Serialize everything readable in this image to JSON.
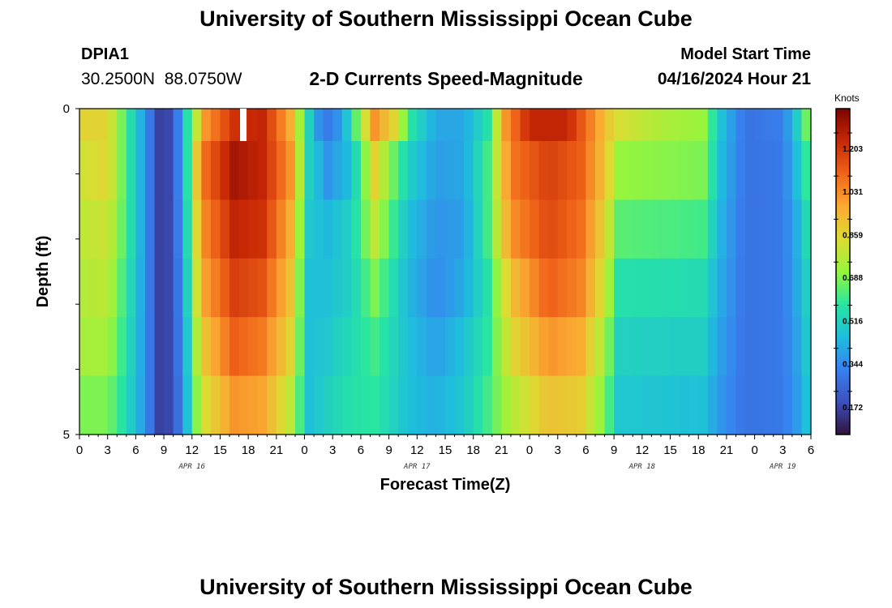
{
  "header": {
    "main_title": "University of Southern Mississippi Ocean Cube",
    "station_id": "DPIA1",
    "station_coords": "30.2500N  88.0750W",
    "plot_title": "2-D Currents Speed-Magnitude",
    "model_start_label": "Model Start Time",
    "model_start_value": "04/16/2024 Hour 21"
  },
  "footer": {
    "title": "University of Southern Mississippi Ocean Cube"
  },
  "chart_data": {
    "type": "heatmap",
    "title": "2-D Currents Speed-Magnitude",
    "xlabel": "Forecast Time(Z)",
    "ylabel": "Depth (ft)",
    "xlim": [
      0,
      78
    ],
    "ylim": [
      0,
      5
    ],
    "y_ticks": [
      "0",
      "5"
    ],
    "x_tick_labels": [
      "0",
      "3",
      "6",
      "9",
      "12",
      "15",
      "18",
      "21",
      "0",
      "3",
      "6",
      "9",
      "12",
      "15",
      "18",
      "21",
      "0",
      "3",
      "6",
      "9",
      "12",
      "15",
      "18",
      "21",
      "0",
      "3",
      "6"
    ],
    "date_labels": [
      {
        "text": "APR 16",
        "hour": 12
      },
      {
        "text": "APR 17",
        "hour": 36
      },
      {
        "text": "APR 18",
        "hour": 60
      },
      {
        "text": "APR 19",
        "hour": 75
      }
    ],
    "colorbar": {
      "unit": "Knots",
      "range": [
        0,
        1.3
      ],
      "ticks": [
        "0.172",
        "0.344",
        "0.516",
        "0.688",
        "0.859",
        "1.031",
        "1.203"
      ],
      "tick_values": [
        0.172,
        0.344,
        0.516,
        0.688,
        0.859,
        1.031,
        1.203
      ]
    },
    "depth_rows": 5,
    "surface_profile": [
      [
        0.0,
        0.8
      ],
      [
        3.0,
        0.8
      ],
      [
        5.0,
        0.55
      ],
      [
        7.0,
        0.3
      ],
      [
        8.5,
        0.1
      ],
      [
        10.0,
        0.12
      ],
      [
        11.5,
        0.5
      ],
      [
        13.5,
        0.95
      ],
      [
        16.5,
        1.15
      ],
      [
        19.5,
        1.18
      ],
      [
        22.5,
        0.9
      ],
      [
        24.5,
        0.45
      ],
      [
        26.0,
        0.22
      ],
      [
        28.0,
        0.32
      ],
      [
        29.0,
        0.5
      ],
      [
        31.5,
        0.95
      ],
      [
        33.5,
        0.8
      ],
      [
        35.5,
        0.5
      ],
      [
        38.0,
        0.34
      ],
      [
        41.0,
        0.34
      ],
      [
        43.5,
        0.5
      ],
      [
        45.5,
        0.95
      ],
      [
        48.0,
        1.18
      ],
      [
        52.0,
        1.18
      ],
      [
        55.0,
        0.95
      ],
      [
        57.0,
        0.78
      ],
      [
        61.5,
        0.7
      ],
      [
        66.5,
        0.65
      ],
      [
        68.5,
        0.4
      ],
      [
        71.0,
        0.22
      ],
      [
        75.0,
        0.25
      ],
      [
        77.0,
        0.5
      ],
      [
        78.0,
        0.7
      ]
    ],
    "depth_profiles": [
      [
        [
          0.0,
          0.75
        ],
        [
          3.0,
          0.8
        ],
        [
          5.0,
          0.55
        ],
        [
          7.0,
          0.3
        ],
        [
          8.5,
          0.1
        ],
        [
          10.0,
          0.12
        ],
        [
          11.5,
          0.5
        ],
        [
          13.0,
          1.0
        ],
        [
          16.5,
          1.23
        ],
        [
          19.5,
          1.18
        ],
        [
          22.5,
          0.95
        ],
        [
          24.5,
          0.45
        ],
        [
          26.5,
          0.3
        ],
        [
          29.0,
          0.4
        ],
        [
          31.5,
          0.8
        ],
        [
          35.0,
          0.45
        ],
        [
          38.0,
          0.32
        ],
        [
          41.0,
          0.34
        ],
        [
          43.5,
          0.55
        ],
        [
          46.0,
          1.0
        ],
        [
          50.0,
          1.12
        ],
        [
          53.5,
          1.05
        ],
        [
          56.0,
          0.85
        ],
        [
          57.5,
          0.65
        ],
        [
          66.5,
          0.62
        ],
        [
          68.5,
          0.38
        ],
        [
          71.0,
          0.22
        ],
        [
          75.0,
          0.24
        ],
        [
          77.0,
          0.45
        ],
        [
          78.0,
          0.6
        ]
      ],
      [
        [
          0.0,
          0.72
        ],
        [
          3.0,
          0.75
        ],
        [
          5.0,
          0.55
        ],
        [
          7.0,
          0.3
        ],
        [
          8.5,
          0.1
        ],
        [
          10.0,
          0.12
        ],
        [
          11.5,
          0.48
        ],
        [
          13.0,
          0.95
        ],
        [
          16.5,
          1.18
        ],
        [
          19.5,
          1.15
        ],
        [
          22.5,
          0.9
        ],
        [
          24.5,
          0.42
        ],
        [
          26.5,
          0.38
        ],
        [
          29.0,
          0.45
        ],
        [
          31.5,
          0.72
        ],
        [
          35.0,
          0.4
        ],
        [
          38.0,
          0.3
        ],
        [
          41.0,
          0.32
        ],
        [
          43.5,
          0.55
        ],
        [
          46.0,
          0.95
        ],
        [
          50.0,
          1.1
        ],
        [
          53.5,
          1.02
        ],
        [
          56.0,
          0.8
        ],
        [
          57.5,
          0.58
        ],
        [
          66.5,
          0.55
        ],
        [
          68.5,
          0.36
        ],
        [
          71.0,
          0.22
        ],
        [
          75.0,
          0.24
        ],
        [
          77.0,
          0.4
        ],
        [
          78.0,
          0.55
        ]
      ],
      [
        [
          0.0,
          0.7
        ],
        [
          3.0,
          0.72
        ],
        [
          5.0,
          0.52
        ],
        [
          7.0,
          0.3
        ],
        [
          8.5,
          0.1
        ],
        [
          10.0,
          0.12
        ],
        [
          11.5,
          0.45
        ],
        [
          13.0,
          0.9
        ],
        [
          16.5,
          1.12
        ],
        [
          19.5,
          1.08
        ],
        [
          22.5,
          0.85
        ],
        [
          24.5,
          0.4
        ],
        [
          26.5,
          0.4
        ],
        [
          29.0,
          0.45
        ],
        [
          31.5,
          0.62
        ],
        [
          35.0,
          0.38
        ],
        [
          38.0,
          0.28
        ],
        [
          41.0,
          0.35
        ],
        [
          43.5,
          0.5
        ],
        [
          46.0,
          0.85
        ],
        [
          50.0,
          1.05
        ],
        [
          53.5,
          0.98
        ],
        [
          56.0,
          0.75
        ],
        [
          57.5,
          0.5
        ],
        [
          66.5,
          0.48
        ],
        [
          68.5,
          0.34
        ],
        [
          71.0,
          0.22
        ],
        [
          75.0,
          0.24
        ],
        [
          77.0,
          0.38
        ],
        [
          78.0,
          0.5
        ]
      ],
      [
        [
          0.0,
          0.68
        ],
        [
          3.0,
          0.68
        ],
        [
          5.0,
          0.5
        ],
        [
          7.0,
          0.3
        ],
        [
          8.5,
          0.1
        ],
        [
          10.0,
          0.12
        ],
        [
          11.5,
          0.42
        ],
        [
          13.0,
          0.82
        ],
        [
          16.5,
          1.05
        ],
        [
          19.5,
          1.0
        ],
        [
          22.5,
          0.8
        ],
        [
          24.5,
          0.4
        ],
        [
          26.5,
          0.42
        ],
        [
          29.0,
          0.48
        ],
        [
          31.5,
          0.55
        ],
        [
          35.0,
          0.4
        ],
        [
          38.0,
          0.32
        ],
        [
          41.0,
          0.4
        ],
        [
          43.5,
          0.52
        ],
        [
          46.0,
          0.78
        ],
        [
          50.0,
          0.95
        ],
        [
          53.5,
          0.9
        ],
        [
          56.0,
          0.68
        ],
        [
          57.5,
          0.45
        ],
        [
          66.5,
          0.44
        ],
        [
          68.5,
          0.32
        ],
        [
          71.0,
          0.22
        ],
        [
          75.0,
          0.24
        ],
        [
          77.0,
          0.36
        ],
        [
          78.0,
          0.48
        ]
      ],
      [
        [
          0.0,
          0.62
        ],
        [
          3.0,
          0.62
        ],
        [
          5.0,
          0.48
        ],
        [
          7.0,
          0.3
        ],
        [
          8.5,
          0.1
        ],
        [
          10.0,
          0.12
        ],
        [
          11.5,
          0.4
        ],
        [
          13.0,
          0.75
        ],
        [
          16.5,
          0.95
        ],
        [
          19.5,
          0.92
        ],
        [
          22.5,
          0.72
        ],
        [
          24.5,
          0.4
        ],
        [
          26.5,
          0.45
        ],
        [
          29.0,
          0.5
        ],
        [
          31.5,
          0.52
        ],
        [
          35.0,
          0.4
        ],
        [
          38.0,
          0.36
        ],
        [
          41.0,
          0.42
        ],
        [
          43.5,
          0.55
        ],
        [
          46.0,
          0.7
        ],
        [
          50.0,
          0.85
        ],
        [
          53.5,
          0.82
        ],
        [
          56.0,
          0.62
        ],
        [
          57.5,
          0.42
        ],
        [
          66.5,
          0.4
        ],
        [
          68.5,
          0.3
        ],
        [
          71.0,
          0.22
        ],
        [
          75.0,
          0.24
        ],
        [
          77.0,
          0.34
        ],
        [
          78.0,
          0.45
        ]
      ]
    ]
  }
}
